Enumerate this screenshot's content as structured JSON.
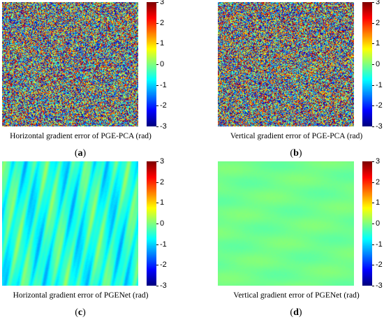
{
  "panels": [
    {
      "caption": "Horizontal gradient error of PGE-PCA (rad)",
      "letter": "a",
      "kind": "noise"
    },
    {
      "caption": "Vertical gradient error of PGE-PCA (rad)",
      "letter": "b",
      "kind": "noise"
    },
    {
      "caption": "Horizontal gradient error of PGENet (rad)",
      "letter": "c",
      "kind": "smooth-streaks"
    },
    {
      "caption": "Vertical gradient error of PGENet (rad)",
      "letter": "d",
      "kind": "smooth-flat"
    }
  ],
  "colorbar": {
    "ticks": [
      "3",
      "2",
      "1",
      "0",
      "-1",
      "-2",
      "-3"
    ],
    "range": [
      -3,
      3
    ],
    "colormap": "jet"
  }
}
